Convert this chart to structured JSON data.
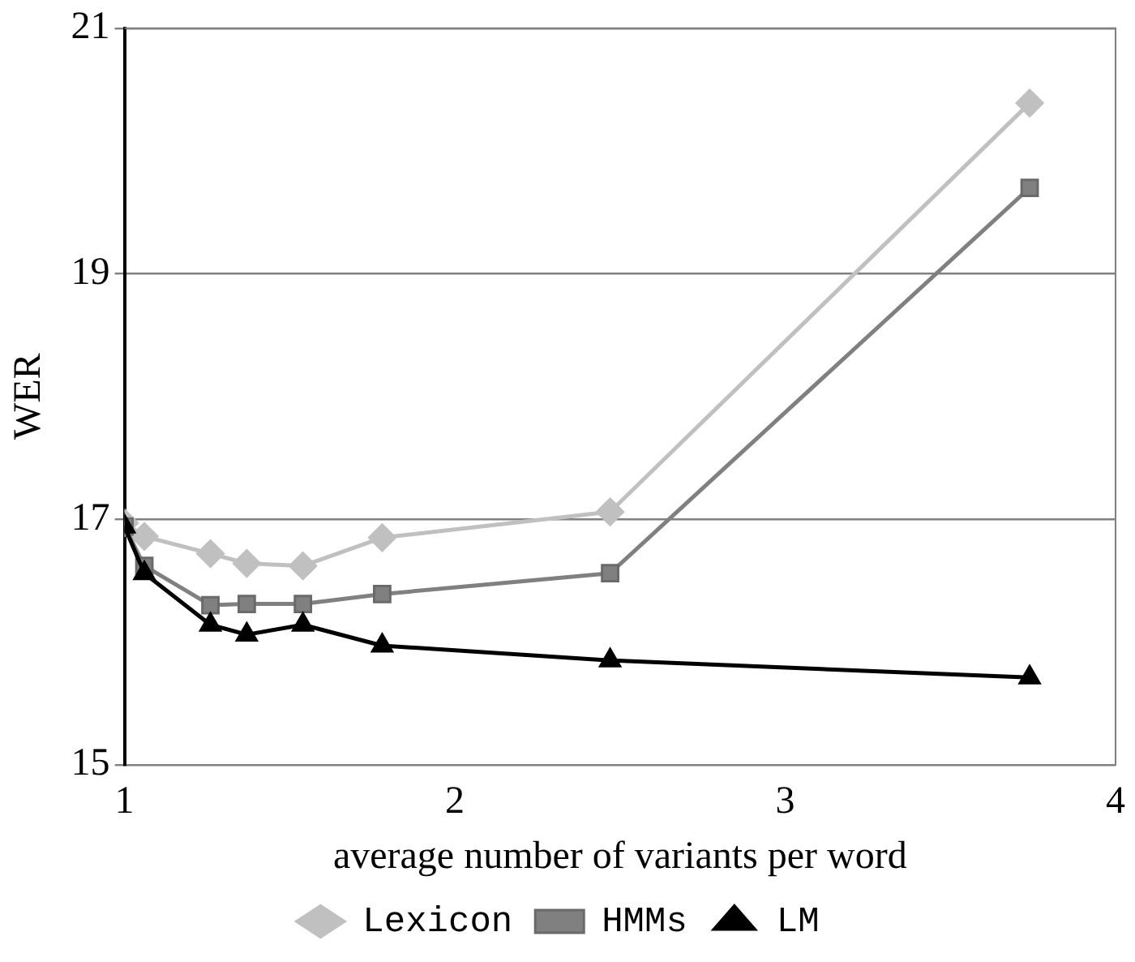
{
  "chart_data": {
    "type": "line",
    "xlabel": "average number of variants per word",
    "ylabel": "WER",
    "xlim": [
      1,
      4
    ],
    "xticks": [
      1,
      2,
      3,
      4
    ],
    "ylim": [
      15,
      21
    ],
    "yticks": [
      15,
      17,
      19,
      21
    ],
    "grid": "y",
    "legend": "bottom",
    "series": [
      {
        "name": "Lexicon",
        "color": "#c0c0c0",
        "marker": "diamond",
        "x": [
          1,
          1.06,
          1.26,
          1.37,
          1.54,
          1.78,
          2.47,
          3.74
        ],
        "values": [
          16.97,
          16.86,
          16.72,
          16.64,
          16.62,
          16.85,
          17.06,
          20.39
        ]
      },
      {
        "name": "HMMs",
        "color": "#808080",
        "marker": "square",
        "x": [
          1,
          1.06,
          1.26,
          1.37,
          1.54,
          1.78,
          2.47,
          3.74
        ],
        "values": [
          16.94,
          16.62,
          16.3,
          16.31,
          16.31,
          16.39,
          16.56,
          19.7
        ]
      },
      {
        "name": "LM",
        "color": "#000000",
        "marker": "triangle",
        "x": [
          1,
          1.06,
          1.26,
          1.37,
          1.54,
          1.78,
          2.47,
          3.74
        ],
        "values": [
          16.94,
          16.56,
          16.14,
          16.06,
          16.14,
          15.97,
          15.85,
          15.71
        ]
      }
    ]
  }
}
